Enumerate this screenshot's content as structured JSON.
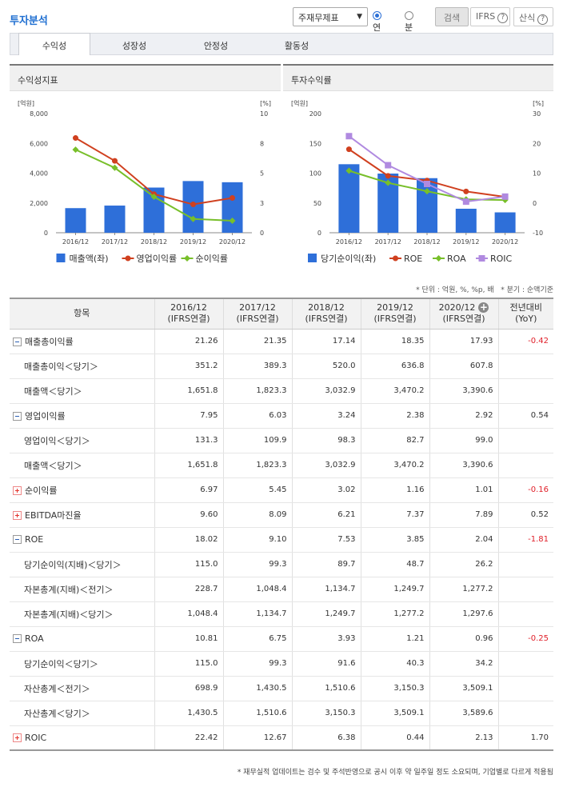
{
  "title": "투자분석",
  "controls": {
    "select_value": "주재무제표",
    "radio_annual": "연간",
    "radio_quarter": "분기",
    "search_label": "검색",
    "ifrs_label": "IFRS",
    "calc_label": "산식",
    "help_glyph": "?"
  },
  "tabs": [
    "수익성",
    "성장성",
    "안정성",
    "활동성"
  ],
  "panel1": {
    "title": "수익성지표"
  },
  "panel2": {
    "title": "투자수익률"
  },
  "notes": {
    "unit": "* 단위 : 억원, %, %p, 배",
    "quarter": "* 분기 : 순액기준"
  },
  "table": {
    "headers": [
      "항목",
      "2016/12",
      "2017/12",
      "2018/12",
      "2019/12",
      "2020/12",
      "전년대비"
    ],
    "subheaders": [
      "",
      "(IFRS연결)",
      "(IFRS연결)",
      "(IFRS연결)",
      "(IFRS연결)",
      "(IFRS연결)",
      "(YoY)"
    ],
    "rows": [
      {
        "label": "매출총이익률",
        "kind": "minus",
        "values": [
          "21.26",
          "21.35",
          "17.14",
          "18.35",
          "17.93"
        ],
        "yoy": "-0.42"
      },
      {
        "label": "매출총이익＜당기＞",
        "kind": "sub",
        "values": [
          "351.2",
          "389.3",
          "520.0",
          "636.8",
          "607.8"
        ],
        "yoy": ""
      },
      {
        "label": "매출액＜당기＞",
        "kind": "sub",
        "values": [
          "1,651.8",
          "1,823.3",
          "3,032.9",
          "3,470.2",
          "3,390.6"
        ],
        "yoy": ""
      },
      {
        "label": "영업이익률",
        "kind": "minus",
        "values": [
          "7.95",
          "6.03",
          "3.24",
          "2.38",
          "2.92"
        ],
        "yoy": "0.54"
      },
      {
        "label": "영업이익＜당기＞",
        "kind": "sub",
        "values": [
          "131.3",
          "109.9",
          "98.3",
          "82.7",
          "99.0"
        ],
        "yoy": ""
      },
      {
        "label": "매출액＜당기＞",
        "kind": "sub",
        "values": [
          "1,651.8",
          "1,823.3",
          "3,032.9",
          "3,470.2",
          "3,390.6"
        ],
        "yoy": ""
      },
      {
        "label": "순이익률",
        "kind": "plus",
        "values": [
          "6.97",
          "5.45",
          "3.02",
          "1.16",
          "1.01"
        ],
        "yoy": "-0.16"
      },
      {
        "label": "EBITDA마진율",
        "kind": "plus",
        "values": [
          "9.60",
          "8.09",
          "6.21",
          "7.37",
          "7.89"
        ],
        "yoy": "0.52"
      },
      {
        "label": "ROE",
        "kind": "minus",
        "values": [
          "18.02",
          "9.10",
          "7.53",
          "3.85",
          "2.04"
        ],
        "yoy": "-1.81"
      },
      {
        "label": "당기순이익(지배)＜당기＞",
        "kind": "sub",
        "values": [
          "115.0",
          "99.3",
          "89.7",
          "48.7",
          "26.2"
        ],
        "yoy": ""
      },
      {
        "label": "자본총계(지배)＜전기＞",
        "kind": "sub",
        "values": [
          "228.7",
          "1,048.4",
          "1,134.7",
          "1,249.7",
          "1,277.2"
        ],
        "yoy": ""
      },
      {
        "label": "자본총계(지배)＜당기＞",
        "kind": "sub",
        "values": [
          "1,048.4",
          "1,134.7",
          "1,249.7",
          "1,277.2",
          "1,297.6"
        ],
        "yoy": ""
      },
      {
        "label": "ROA",
        "kind": "minus",
        "values": [
          "10.81",
          "6.75",
          "3.93",
          "1.21",
          "0.96"
        ],
        "yoy": "-0.25"
      },
      {
        "label": "당기순이익＜당기＞",
        "kind": "sub",
        "values": [
          "115.0",
          "99.3",
          "91.6",
          "40.3",
          "34.2"
        ],
        "yoy": ""
      },
      {
        "label": "자산총계＜전기＞",
        "kind": "sub",
        "values": [
          "698.9",
          "1,430.5",
          "1,510.6",
          "3,150.3",
          "3,509.1"
        ],
        "yoy": ""
      },
      {
        "label": "자산총계＜당기＞",
        "kind": "sub",
        "values": [
          "1,430.5",
          "1,510.6",
          "3,150.3",
          "3,509.1",
          "3,589.6"
        ],
        "yoy": ""
      },
      {
        "label": "ROIC",
        "kind": "plus",
        "values": [
          "22.42",
          "12.67",
          "6.38",
          "0.44",
          "2.13"
        ],
        "yoy": "1.70"
      }
    ]
  },
  "footer": "* 재무실적 업데이트는 검수 및 주석반영으로 공시 이후 약 일주일 정도 소요되며, 기업별로 다르게 적용됨",
  "chart_data": [
    {
      "type": "bar+line",
      "title": "수익성지표",
      "categories": [
        "2016/12",
        "2017/12",
        "2018/12",
        "2019/12",
        "2020/12"
      ],
      "left_unit": "[억원]",
      "right_unit": "[%]",
      "left_ticks": [
        "8,000",
        "6,000",
        "4,000",
        "2,000",
        "0"
      ],
      "right_ticks": [
        "10",
        "8",
        "5",
        "3",
        "0"
      ],
      "left_ylim": [
        0,
        8000
      ],
      "right_ylim": [
        0,
        10
      ],
      "bar_series": {
        "name": "매출액(좌)",
        "values": [
          1651.8,
          1823.3,
          3032.9,
          3470.2,
          3390.6
        ],
        "color": "#2e6fd9"
      },
      "line_series": [
        {
          "name": "영업이익률",
          "values": [
            7.95,
            6.03,
            3.24,
            2.38,
            2.92
          ],
          "color": "#d0401f"
        },
        {
          "name": "순이익률",
          "values": [
            6.97,
            5.45,
            3.02,
            1.16,
            1.01
          ],
          "color": "#78bf2a"
        }
      ]
    },
    {
      "type": "bar+line",
      "title": "투자수익률",
      "categories": [
        "2016/12",
        "2017/12",
        "2018/12",
        "2019/12",
        "2020/12"
      ],
      "left_unit": "[억원]",
      "right_unit": "[%]",
      "left_ticks": [
        "200",
        "150",
        "100",
        "50",
        "0"
      ],
      "right_ticks": [
        "30",
        "20",
        "10",
        "0",
        "-10"
      ],
      "left_ylim": [
        0,
        200
      ],
      "right_ylim": [
        -10,
        30
      ],
      "bar_series": {
        "name": "당기순이익(좌)",
        "values": [
          115.0,
          99.3,
          91.6,
          40.3,
          34.2
        ],
        "color": "#2e6fd9"
      },
      "line_series": [
        {
          "name": "ROE",
          "values": [
            18.02,
            9.1,
            7.53,
            3.85,
            2.04
          ],
          "color": "#d0401f"
        },
        {
          "name": "ROA",
          "values": [
            10.81,
            6.75,
            3.93,
            1.21,
            0.96
          ],
          "color": "#78bf2a"
        },
        {
          "name": "ROIC",
          "values": [
            22.42,
            12.67,
            6.38,
            0.44,
            2.13
          ],
          "color": "#b08ae0"
        }
      ]
    }
  ]
}
